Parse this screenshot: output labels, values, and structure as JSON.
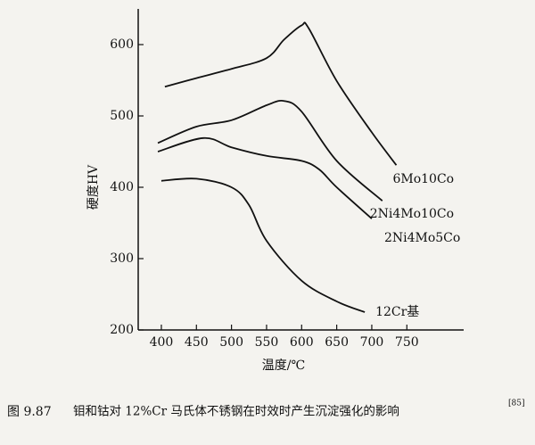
{
  "chart_data": {
    "type": "line",
    "x_label": "温度/℃",
    "y_label": "硬度HV",
    "xlim": [
      367,
      831
    ],
    "ylim": [
      200,
      650
    ],
    "xticks": [
      400,
      450,
      500,
      550,
      600,
      650,
      700,
      750
    ],
    "yticks": [
      200,
      300,
      400,
      500,
      600
    ],
    "series": [
      {
        "name": "6Mo10Co",
        "color": "#111111",
        "x": [
          405,
          450,
          500,
          550,
          575,
          600,
          610,
          650,
          700,
          735
        ],
        "values": [
          541,
          553,
          566,
          581,
          607,
          627,
          623,
          549,
          477,
          431
        ]
      },
      {
        "name": "2Ni4Mo10Co",
        "color": "#111111",
        "x": [
          395,
          450,
          500,
          550,
          575,
          600,
          650,
          715
        ],
        "values": [
          462,
          485,
          494,
          515,
          521,
          506,
          437,
          381
        ]
      },
      {
        "name": "2Ni4Mo5Co",
        "color": "#111111",
        "x": [
          395,
          460,
          500,
          550,
          600,
          625,
          650,
          700
        ],
        "values": [
          450,
          469,
          456,
          444,
          437,
          425,
          400,
          356
        ]
      },
      {
        "name": "12Cr基",
        "color": "#111111",
        "x": [
          400,
          450,
          500,
          525,
          550,
          600,
          650,
          690
        ],
        "values": [
          409,
          412,
          400,
          375,
          325,
          269,
          240,
          225
        ]
      }
    ]
  },
  "caption": {
    "number": "图 9.87",
    "text": "钼和钴对 12%Cr 马氏体不锈钢在时效时产生沉淀强化的影响",
    "ref": "[85]"
  }
}
